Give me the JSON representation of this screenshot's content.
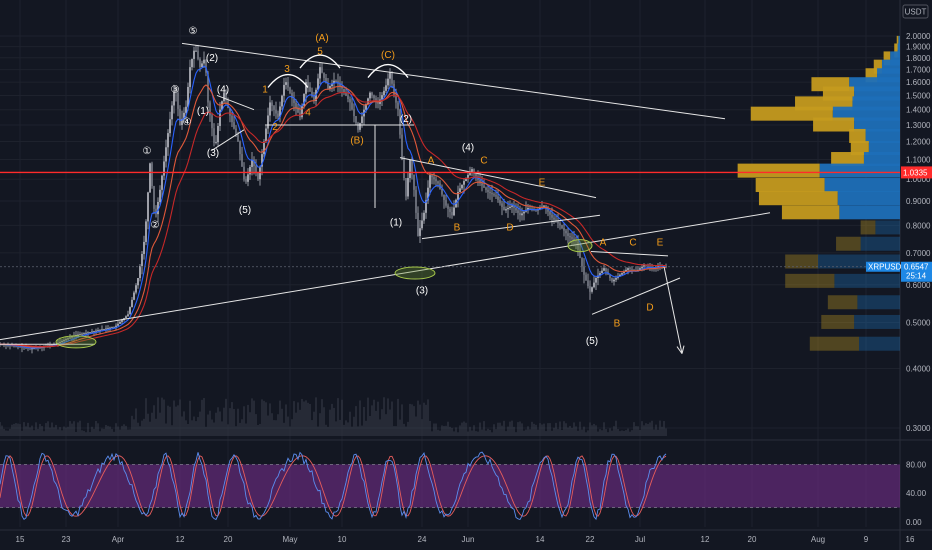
{
  "symbol_badge": "USDT",
  "chart_data": {
    "type": "candlestick",
    "symbol": "XRPUSDT",
    "y_scale": "log",
    "ylim": [
      0.27,
      2.2
    ],
    "y_ticks": [
      "2.0000",
      "1.9000",
      "1.8000",
      "1.7000",
      "1.6000",
      "1.5000",
      "1.4000",
      "1.3000",
      "1.2000",
      "1.1000",
      "1.0000",
      "0.9000",
      "0.8000",
      "0.7000",
      "0.6000",
      "0.5000",
      "0.4000",
      "0.3000"
    ],
    "x_ticks": [
      "15",
      "23",
      "Apr",
      "12",
      "20",
      "May",
      "10",
      "24",
      "Jun",
      "14",
      "22",
      "Jul",
      "12",
      "20",
      "Aug",
      "9",
      "16"
    ],
    "price_path": [
      [
        0,
        0.45
      ],
      [
        30,
        0.44
      ],
      [
        55,
        0.45
      ],
      [
        75,
        0.47
      ],
      [
        95,
        0.48
      ],
      [
        115,
        0.49
      ],
      [
        128,
        0.52
      ],
      [
        138,
        0.62
      ],
      [
        145,
        0.76
      ],
      [
        150,
        1.08
      ],
      [
        155,
        0.82
      ],
      [
        160,
        0.95
      ],
      [
        168,
        1.25
      ],
      [
        175,
        1.58
      ],
      [
        180,
        1.3
      ],
      [
        186,
        1.42
      ],
      [
        190,
        1.72
      ],
      [
        195,
        1.9
      ],
      [
        200,
        1.72
      ],
      [
        205,
        1.8
      ],
      [
        208,
        1.45
      ],
      [
        212,
        1.28
      ],
      [
        215,
        1.15
      ],
      [
        220,
        1.4
      ],
      [
        224,
        1.52
      ],
      [
        230,
        1.36
      ],
      [
        238,
        1.2
      ],
      [
        245,
        0.97
      ],
      [
        252,
        1.1
      ],
      [
        258,
        1.0
      ],
      [
        264,
        1.2
      ],
      [
        270,
        1.45
      ],
      [
        278,
        1.35
      ],
      [
        285,
        1.62
      ],
      [
        292,
        1.48
      ],
      [
        300,
        1.35
      ],
      [
        306,
        1.6
      ],
      [
        314,
        1.46
      ],
      [
        320,
        1.72
      ],
      [
        328,
        1.55
      ],
      [
        335,
        1.62
      ],
      [
        342,
        1.55
      ],
      [
        350,
        1.45
      ],
      [
        358,
        1.27
      ],
      [
        364,
        1.4
      ],
      [
        370,
        1.52
      ],
      [
        378,
        1.44
      ],
      [
        385,
        1.55
      ],
      [
        390,
        1.68
      ],
      [
        394,
        1.5
      ],
      [
        398,
        1.4
      ],
      [
        402,
        1.1
      ],
      [
        406,
        0.92
      ],
      [
        410,
        1.1
      ],
      [
        414,
        0.95
      ],
      [
        418,
        0.76
      ],
      [
        424,
        0.85
      ],
      [
        430,
        1.02
      ],
      [
        438,
        0.98
      ],
      [
        446,
        0.88
      ],
      [
        452,
        0.84
      ],
      [
        458,
        0.94
      ],
      [
        465,
        1.0
      ],
      [
        472,
        1.05
      ],
      [
        480,
        0.98
      ],
      [
        488,
        0.94
      ],
      [
        496,
        0.92
      ],
      [
        504,
        0.86
      ],
      [
        512,
        0.88
      ],
      [
        520,
        0.84
      ],
      [
        528,
        0.87
      ],
      [
        536,
        0.86
      ],
      [
        544,
        0.88
      ],
      [
        552,
        0.83
      ],
      [
        560,
        0.8
      ],
      [
        568,
        0.76
      ],
      [
        576,
        0.74
      ],
      [
        584,
        0.63
      ],
      [
        590,
        0.58
      ],
      [
        596,
        0.62
      ],
      [
        604,
        0.65
      ],
      [
        612,
        0.61
      ],
      [
        620,
        0.63
      ],
      [
        628,
        0.65
      ],
      [
        636,
        0.64
      ],
      [
        644,
        0.66
      ],
      [
        652,
        0.65
      ],
      [
        660,
        0.66
      ],
      [
        666,
        0.6547
      ]
    ],
    "last_price": "0.6547",
    "last_price_tag": "XRPUSDT",
    "countdown": "25:14",
    "horizontal_level": "1.0335",
    "elliott_labels": [
      {
        "text": "①",
        "x": 147,
        "y": 1.13,
        "color": "white"
      },
      {
        "text": "②",
        "x": 155,
        "y": 0.79,
        "color": "white"
      },
      {
        "text": "③",
        "x": 175,
        "y": 1.52,
        "color": "white"
      },
      {
        "text": "④",
        "x": 187,
        "y": 1.3,
        "color": "white"
      },
      {
        "text": "⑤",
        "x": 193,
        "y": 2.02,
        "color": "white"
      },
      {
        "text": "(1)",
        "x": 203,
        "y": 1.37,
        "color": "white"
      },
      {
        "text": "(2)",
        "x": 212,
        "y": 1.77,
        "color": "white"
      },
      {
        "text": "(3)",
        "x": 213,
        "y": 1.12,
        "color": "white"
      },
      {
        "text": "(4)",
        "x": 223,
        "y": 1.52,
        "color": "white"
      },
      {
        "text": "(5)",
        "x": 245,
        "y": 0.85,
        "color": "white"
      },
      {
        "text": "1",
        "x": 265,
        "y": 1.52,
        "color": "orange"
      },
      {
        "text": "2",
        "x": 275,
        "y": 1.27,
        "color": "orange"
      },
      {
        "text": "3",
        "x": 287,
        "y": 1.68,
        "color": "orange"
      },
      {
        "text": "4",
        "x": 308,
        "y": 1.36,
        "color": "orange"
      },
      {
        "text": "5",
        "x": 320,
        "y": 1.83,
        "color": "orange"
      },
      {
        "text": "(A)",
        "x": 322,
        "y": 1.95,
        "color": "orange"
      },
      {
        "text": "(B)",
        "x": 357,
        "y": 1.19,
        "color": "orange"
      },
      {
        "text": "(C)",
        "x": 388,
        "y": 1.8,
        "color": "orange"
      },
      {
        "text": "(1)",
        "x": 396,
        "y": 0.8,
        "color": "white"
      },
      {
        "text": "(2)",
        "x": 406,
        "y": 1.32,
        "color": "white"
      },
      {
        "text": "(3)",
        "x": 422,
        "y": 0.575,
        "color": "white"
      },
      {
        "text": "(4)",
        "x": 468,
        "y": 1.15,
        "color": "white"
      },
      {
        "text": "(5)",
        "x": 592,
        "y": 0.45,
        "color": "white"
      },
      {
        "text": "A",
        "x": 431,
        "y": 1.08,
        "color": "orange"
      },
      {
        "text": "B",
        "x": 457,
        "y": 0.78,
        "color": "orange"
      },
      {
        "text": "C",
        "x": 484,
        "y": 1.08,
        "color": "orange"
      },
      {
        "text": "D",
        "x": 510,
        "y": 0.78,
        "color": "orange"
      },
      {
        "text": "E",
        "x": 542,
        "y": 0.97,
        "color": "orange"
      },
      {
        "text": "A",
        "x": 603,
        "y": 0.725,
        "color": "orange"
      },
      {
        "text": "B",
        "x": 617,
        "y": 0.49,
        "color": "orange"
      },
      {
        "text": "C",
        "x": 633,
        "y": 0.725,
        "color": "orange"
      },
      {
        "text": "D",
        "x": 650,
        "y": 0.53,
        "color": "orange"
      },
      {
        "text": "E",
        "x": 660,
        "y": 0.725,
        "color": "orange"
      }
    ],
    "volume_profile": [
      {
        "price": 1.93,
        "buy": 2,
        "sell": 2
      },
      {
        "price": 1.86,
        "buy": 4,
        "sell": 3
      },
      {
        "price": 1.79,
        "buy": 8,
        "sell": 12
      },
      {
        "price": 1.72,
        "buy": 10,
        "sell": 22
      },
      {
        "price": 1.65,
        "buy": 14,
        "sell": 28
      },
      {
        "price": 1.58,
        "buy": 46,
        "sell": 62
      },
      {
        "price": 1.51,
        "buy": 38,
        "sell": 56
      },
      {
        "price": 1.44,
        "buy": 70,
        "sell": 58
      },
      {
        "price": 1.37,
        "buy": 100,
        "sell": 82
      },
      {
        "price": 1.3,
        "buy": 50,
        "sell": 56
      },
      {
        "price": 1.23,
        "buy": 20,
        "sell": 42
      },
      {
        "price": 1.16,
        "buy": 22,
        "sell": 38
      },
      {
        "price": 1.1,
        "buy": 40,
        "sell": 44
      },
      {
        "price": 1.04,
        "buy": 100,
        "sell": 98
      },
      {
        "price": 0.97,
        "buy": 84,
        "sell": 92
      },
      {
        "price": 0.91,
        "buy": 96,
        "sell": 76
      },
      {
        "price": 0.85,
        "buy": 70,
        "sell": 74
      },
      {
        "price": 0.79,
        "buy": 18,
        "sell": 30
      },
      {
        "price": 0.73,
        "buy": 30,
        "sell": 48
      },
      {
        "price": 0.67,
        "buy": 40,
        "sell": 100
      },
      {
        "price": 0.61,
        "buy": 60,
        "sell": 80
      },
      {
        "price": 0.55,
        "buy": 36,
        "sell": 52
      },
      {
        "price": 0.5,
        "buy": 40,
        "sell": 56
      },
      {
        "price": 0.45,
        "buy": 60,
        "sell": 50
      }
    ],
    "oscillator": {
      "y_ticks": [
        "80.00",
        "40.00",
        "0.00"
      ],
      "upper_band": 80,
      "lower_band": 20
    }
  },
  "colors": {
    "background": "#131722",
    "grid": "#1e222d",
    "candle": "#b2b5be",
    "ma_fast": "#2962ff",
    "ma_mid": "#e0593a",
    "ma_slow": "#c62828",
    "level": "#ff2b2b",
    "orange_label": "#f59d1a",
    "ellipse": "#6b8f2d",
    "vp_buy": "#c49a1f",
    "vp_sell": "#1e6fb8",
    "osc_band": "#7b2f93",
    "price_tag": "#1e88e5"
  }
}
